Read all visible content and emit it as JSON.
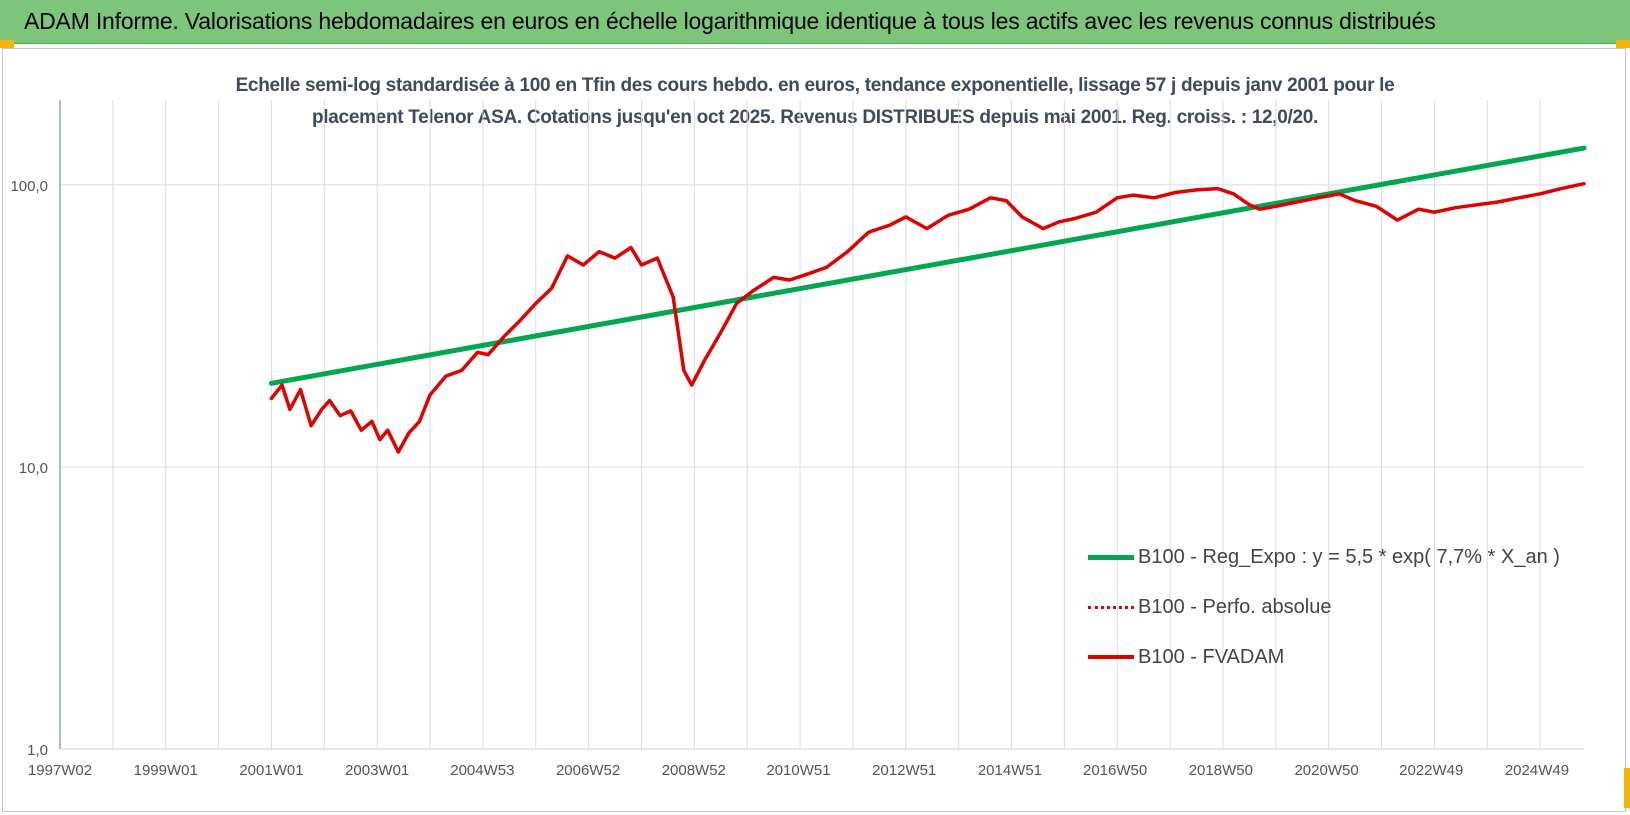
{
  "header": {
    "title": "ADAM Informe. Valorisations hebdomadaires en euros en échelle logarithmique identique à tous les actifs avec les revenus connus distribués"
  },
  "chart_data": {
    "type": "line",
    "title_lines": [
      "Echelle semi-log standardisée à 100 en Tfin des cours hebdo. en euros, tendance exponentielle, lissage 57 j depuis janv 2001 pour le",
      "placement Telenor ASA. Cotations jusqu'en oct 2025. Revenus DISTRIBUES depuis mai 2001. Reg. croiss. : 12,0/20."
    ],
    "y_scale": "log",
    "ylim": [
      1,
      200
    ],
    "y_ticks": [
      {
        "value": 1,
        "label": "1,0"
      },
      {
        "value": 10,
        "label": "10,0"
      },
      {
        "value": 100,
        "label": "100,0"
      }
    ],
    "x_start": 1997.0,
    "x_end": 2025.83,
    "x_ticks": [
      {
        "value": 1997.0,
        "label": "1997W02"
      },
      {
        "value": 1999.0,
        "label": "1999W01"
      },
      {
        "value": 2001.0,
        "label": "2001W01"
      },
      {
        "value": 2003.0,
        "label": "2003W01"
      },
      {
        "value": 2004.99,
        "label": "2004W53"
      },
      {
        "value": 2006.99,
        "label": "2006W52"
      },
      {
        "value": 2008.99,
        "label": "2008W52"
      },
      {
        "value": 2010.97,
        "label": "2010W51"
      },
      {
        "value": 2012.97,
        "label": "2012W51"
      },
      {
        "value": 2014.97,
        "label": "2014W51"
      },
      {
        "value": 2016.96,
        "label": "2016W50"
      },
      {
        "value": 2018.96,
        "label": "2018W50"
      },
      {
        "value": 2020.96,
        "label": "2020W50"
      },
      {
        "value": 2022.94,
        "label": "2022W49"
      },
      {
        "value": 2024.94,
        "label": "2024W49"
      }
    ],
    "grid": "vertical and horizontal",
    "legend_position": "bottom-right",
    "series": [
      {
        "name": "B100 - Reg_Expo : y = 5,5 * exp( 7,7% *  X_an )",
        "color": "#00a650",
        "style": "solid-thick",
        "x": [
          2001.0,
          2025.83
        ],
        "y": [
          19.8,
          135
        ]
      },
      {
        "name": "B100 - Perfo. absolue",
        "color": "#e00000",
        "style": "dotted",
        "x": [],
        "y": []
      },
      {
        "name": "B100 - FVADAM",
        "color": "#e00000",
        "style": "solid",
        "x": [
          2001.0,
          2001.2,
          2001.35,
          2001.55,
          2001.75,
          2001.95,
          2002.1,
          2002.3,
          2002.5,
          2002.7,
          2002.9,
          2003.05,
          2003.2,
          2003.4,
          2003.6,
          2003.8,
          2004.0,
          2004.3,
          2004.6,
          2004.9,
          2005.1,
          2005.4,
          2005.7,
          2006.0,
          2006.3,
          2006.6,
          2006.9,
          2007.2,
          2007.5,
          2007.8,
          2008.0,
          2008.3,
          2008.6,
          2008.8,
          2008.95,
          2009.2,
          2009.5,
          2009.8,
          2010.1,
          2010.5,
          2010.8,
          2011.1,
          2011.5,
          2011.9,
          2012.3,
          2012.7,
          2013.0,
          2013.4,
          2013.8,
          2014.2,
          2014.6,
          2014.9,
          2015.2,
          2015.6,
          2015.9,
          2016.2,
          2016.6,
          2017.0,
          2017.3,
          2017.7,
          2018.1,
          2018.5,
          2018.9,
          2019.2,
          2019.5,
          2019.7,
          2020.0,
          2020.4,
          2020.8,
          2021.2,
          2021.5,
          2021.9,
          2022.3,
          2022.7,
          2023.0,
          2023.4,
          2023.8,
          2024.2,
          2024.6,
          2025.0,
          2025.4,
          2025.83
        ],
        "y": [
          17.5,
          19.5,
          16.0,
          18.8,
          14.0,
          16.0,
          17.2,
          15.2,
          15.8,
          13.5,
          14.5,
          12.5,
          13.5,
          11.3,
          13.2,
          14.5,
          18.0,
          21.0,
          22.0,
          25.5,
          25.0,
          29.0,
          33.0,
          38.0,
          43.0,
          56.0,
          52.0,
          58.0,
          55.0,
          60.0,
          52.0,
          55.0,
          40.0,
          22.0,
          19.5,
          24.0,
          30.0,
          38.0,
          42.0,
          47.0,
          46.0,
          48.0,
          51.0,
          58.0,
          68.0,
          72.0,
          77.0,
          70.0,
          78.0,
          82.0,
          90.0,
          88.0,
          77.0,
          70.0,
          74.0,
          76.0,
          80.0,
          90.0,
          92.0,
          90.0,
          94.0,
          96.0,
          97.0,
          93.0,
          85.0,
          82.0,
          84.0,
          87.0,
          90.0,
          93.0,
          88.0,
          84.0,
          75.0,
          82.0,
          80.0,
          83.0,
          85.0,
          87.0,
          90.0,
          93.0,
          97.0,
          101.0
        ]
      }
    ]
  }
}
